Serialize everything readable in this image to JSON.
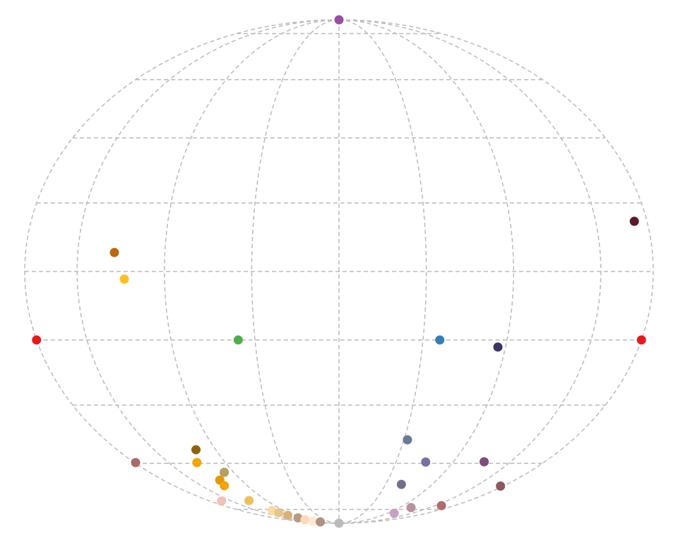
{
  "chart_data": {
    "type": "map",
    "projection": "mollweide",
    "meridians": [
      -180,
      -150,
      -100,
      -50,
      0,
      50,
      100,
      150,
      180
    ],
    "parallels": [
      -80,
      -60,
      -40,
      -20,
      0,
      20,
      40,
      60,
      80
    ],
    "graticule_color": "#bbbbbb",
    "lon": [
      0,
      0,
      -180,
      180,
      -60,
      60,
      95.4,
      172.6,
      -129,
      -123,
      -116,
      52.7,
      -179,
      -125,
      76,
      127,
      -109,
      -122,
      -125,
      67,
      177,
      -164,
      -124.5,
      160,
      119,
      113,
      -122,
      -120,
      -118,
      -115,
      -117,
      -121,
      -106
    ],
    "lat": [
      90,
      -90,
      -20,
      -20,
      -20,
      -20,
      -22.1,
      14.6,
      5.5,
      -2.2,
      -55,
      -51.5,
      -59.7,
      -59.7,
      -59.5,
      -59.4,
      -63.4,
      -66.5,
      -68.8,
      -68.3,
      -69,
      -75.7,
      -75.5,
      -78,
      -79,
      -82.1,
      -80.6,
      -81.8,
      -83.4,
      -85.1,
      -86.4,
      -87.7,
      -88.3
    ],
    "colors": [
      "#984ea3",
      "#bbbbbb",
      "#e41a1c",
      "#e41a1c",
      "#4daf4a",
      "#377eb8",
      "#3b3464",
      "#5c1a2a",
      "#b8690a",
      "#ffbf1f",
      "#8a6510",
      "#6a7a94",
      "#a86b6b",
      "#f5a400",
      "#7b6fa6",
      "#7d4e7a",
      "#b5a060",
      "#e09a10",
      "#f5a400",
      "#72708a",
      "#8b5a5e",
      "#f5c0b8",
      "#eebf5a",
      "#b06b6b",
      "#b890a0",
      "#c9a0c0",
      "#ffd9a0",
      "#e8c48a",
      "#d9b07a",
      "#b89a80",
      "#ffd9b8",
      "#ffe8d0",
      "#b09080"
    ]
  }
}
